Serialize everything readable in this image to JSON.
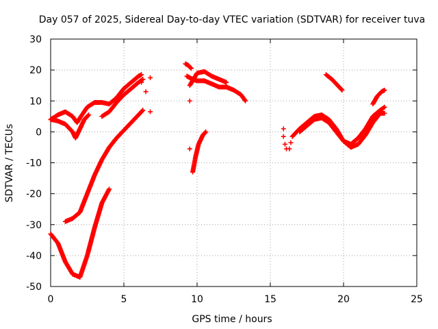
{
  "chart_data": {
    "type": "scatter",
    "title": "Day 057 of 2025, Sidereal Day-to-day VTEC variation (SDTVAR) for receiver tuva",
    "xlabel": "GPS time / hours",
    "ylabel": "SDTVAR / TECUs",
    "xlim": [
      0,
      25
    ],
    "ylim": [
      -50,
      30
    ],
    "xticks": [
      0,
      5,
      10,
      15,
      20,
      25
    ],
    "yticks": [
      -50,
      -40,
      -30,
      -20,
      -10,
      0,
      10,
      20,
      30
    ],
    "grid": true,
    "marker": "plus",
    "color": "#ff0000",
    "series": [
      {
        "name": "track-1",
        "x": [
          0.0,
          0.5,
          1.0,
          1.5,
          1.8,
          2.0,
          2.5,
          3.0,
          3.5,
          4.0,
          4.5,
          5.0,
          5.5,
          6.0,
          6.2
        ],
        "y": [
          4,
          5.5,
          6.5,
          5,
          3,
          4.5,
          8,
          9.5,
          9.5,
          9,
          11,
          14,
          16,
          18,
          18.5
        ]
      },
      {
        "name": "track-2",
        "x": [
          0.0,
          0.5,
          1.0,
          1.5,
          1.7,
          2.0,
          2.3,
          2.6
        ],
        "y": [
          4,
          3.5,
          2.5,
          0,
          -2,
          1,
          4,
          5.5
        ]
      },
      {
        "name": "track-3",
        "x": [
          0.0,
          0.5,
          1.0,
          1.5,
          2.0,
          2.5,
          3.0,
          3.5,
          4.0
        ],
        "y": [
          -33,
          -36,
          -42,
          -46,
          -47,
          -40,
          -31,
          -23,
          -18.5
        ]
      },
      {
        "name": "track-4",
        "x": [
          1.0,
          1.5,
          2.0,
          2.5,
          3.0,
          3.5,
          4.0,
          4.5,
          5.0,
          5.5,
          6.0,
          6.3
        ],
        "y": [
          -29,
          -28,
          -26,
          -20,
          -14,
          -9,
          -5,
          -2,
          0.5,
          3,
          5.5,
          7
        ]
      },
      {
        "name": "track-5",
        "x": [
          3.5,
          4.0,
          4.5,
          5.0,
          5.5,
          6.0,
          6.3
        ],
        "y": [
          5,
          6.5,
          9.5,
          12,
          14,
          16,
          17
        ]
      },
      {
        "name": "track-6",
        "x": [
          9.2,
          9.4,
          9.6
        ],
        "y": [
          22,
          21.5,
          20.5
        ]
      },
      {
        "name": "track-7",
        "x": [
          9.3,
          9.5,
          9.7,
          10.0,
          10.5,
          11.0,
          11.5,
          12.0,
          12.5,
          13.0,
          13.3
        ],
        "y": [
          18,
          17.5,
          17,
          16.5,
          16.5,
          15.5,
          14.5,
          14.5,
          13.5,
          12,
          10
        ]
      },
      {
        "name": "track-8",
        "x": [
          9.5,
          10.0,
          10.5,
          11.0,
          11.5,
          12.0
        ],
        "y": [
          15,
          19,
          19.5,
          18,
          17,
          16
        ]
      },
      {
        "name": "track-9",
        "x": [
          9.7,
          9.9,
          10.1,
          10.4,
          10.6
        ],
        "y": [
          -13,
          -8,
          -4,
          -1,
          0
        ]
      },
      {
        "name": "track-10",
        "x": [
          16.5,
          17.0,
          17.5,
          18.0,
          18.5,
          19.0,
          19.5,
          20.0,
          20.5,
          21.0,
          21.5,
          22.0,
          22.5,
          22.8
        ],
        "y": [
          -1.5,
          1,
          3,
          5,
          5.5,
          4,
          1,
          -3,
          -4,
          -2,
          1,
          5,
          7,
          8
        ]
      },
      {
        "name": "track-11",
        "x": [
          17.0,
          17.5,
          18.0,
          18.5,
          19.0,
          19.5,
          20.0,
          20.5,
          21.0,
          21.5,
          22.0,
          22.5,
          22.8
        ],
        "y": [
          0,
          2,
          4,
          4.5,
          3,
          0,
          -3,
          -5,
          -4,
          -1,
          3,
          6,
          6
        ]
      },
      {
        "name": "track-12",
        "x": [
          18.8,
          19.2,
          19.6,
          19.9
        ],
        "y": [
          18.5,
          17,
          15,
          13.5
        ]
      },
      {
        "name": "track-13",
        "x": [
          22.0,
          22.3,
          22.6,
          22.8
        ],
        "y": [
          9,
          11.5,
          13,
          13.5
        ]
      },
      {
        "name": "isolated-points",
        "x": [
          6.2,
          6.5,
          6.8,
          6.8,
          9.5,
          9.5,
          15.9,
          15.9,
          16.0,
          16.1,
          16.3,
          16.4
        ],
        "y": [
          16,
          13,
          17.5,
          6.5,
          10,
          -5.5,
          1,
          -1.5,
          -4,
          -5.5,
          -5.5,
          -3.5
        ]
      }
    ]
  }
}
